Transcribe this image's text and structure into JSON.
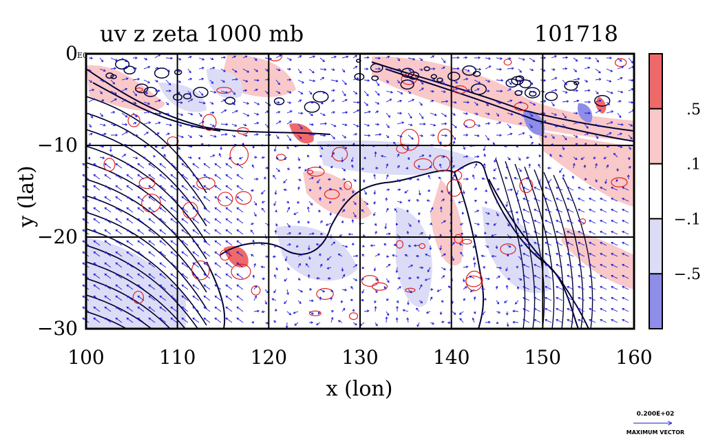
{
  "chart_data": {
    "type": "heatmap",
    "title": "uv z zeta 1000 mb",
    "date_label": "101718",
    "xlabel": "x (lon)",
    "ylabel": "y (lat)",
    "xlim": [
      100,
      160
    ],
    "ylim": [
      -30,
      0
    ],
    "x_ticks": [
      {
        "value": 100,
        "label": "100"
      },
      {
        "value": 110,
        "label": "110"
      },
      {
        "value": 120,
        "label": "120"
      },
      {
        "value": 130,
        "label": "130"
      },
      {
        "value": 140,
        "label": "140"
      },
      {
        "value": 150,
        "label": "150"
      },
      {
        "value": 160,
        "label": "160"
      }
    ],
    "y_ticks": [
      {
        "value": 0,
        "label": "0"
      },
      {
        "value": -10,
        "label": "−10"
      },
      {
        "value": -20,
        "label": "−20"
      },
      {
        "value": -30,
        "label": "−30"
      }
    ],
    "corner_exponent_label": "E0",
    "grid": true,
    "colorbar": {
      "levels": [
        {
          "label": ".5",
          "value": 0.5
        },
        {
          "label": ".1",
          "value": 0.1
        },
        {
          "label": "−.1",
          "value": -0.1
        },
        {
          "label": "−.5",
          "value": -0.5
        }
      ],
      "bands": [
        {
          "range": "> .5",
          "color": "#ee6a6a"
        },
        {
          "range": ".1 to .5",
          "color": "#f9c8c8"
        },
        {
          "range": "−.1 to .1",
          "color": "#ffffff"
        },
        {
          "range": "−.5 to −.1",
          "color": "#dcdcf6"
        },
        {
          "range": "< −.5",
          "color": "#8e8ee8"
        }
      ]
    },
    "reference_vector": {
      "value_label": "0.200E+02",
      "caption": "MAXIMUM VECTOR"
    },
    "colors": {
      "vector": "#1a1ad6",
      "contour": "#000033",
      "positive_contour": "#e02020",
      "grid": "#000000"
    }
  }
}
